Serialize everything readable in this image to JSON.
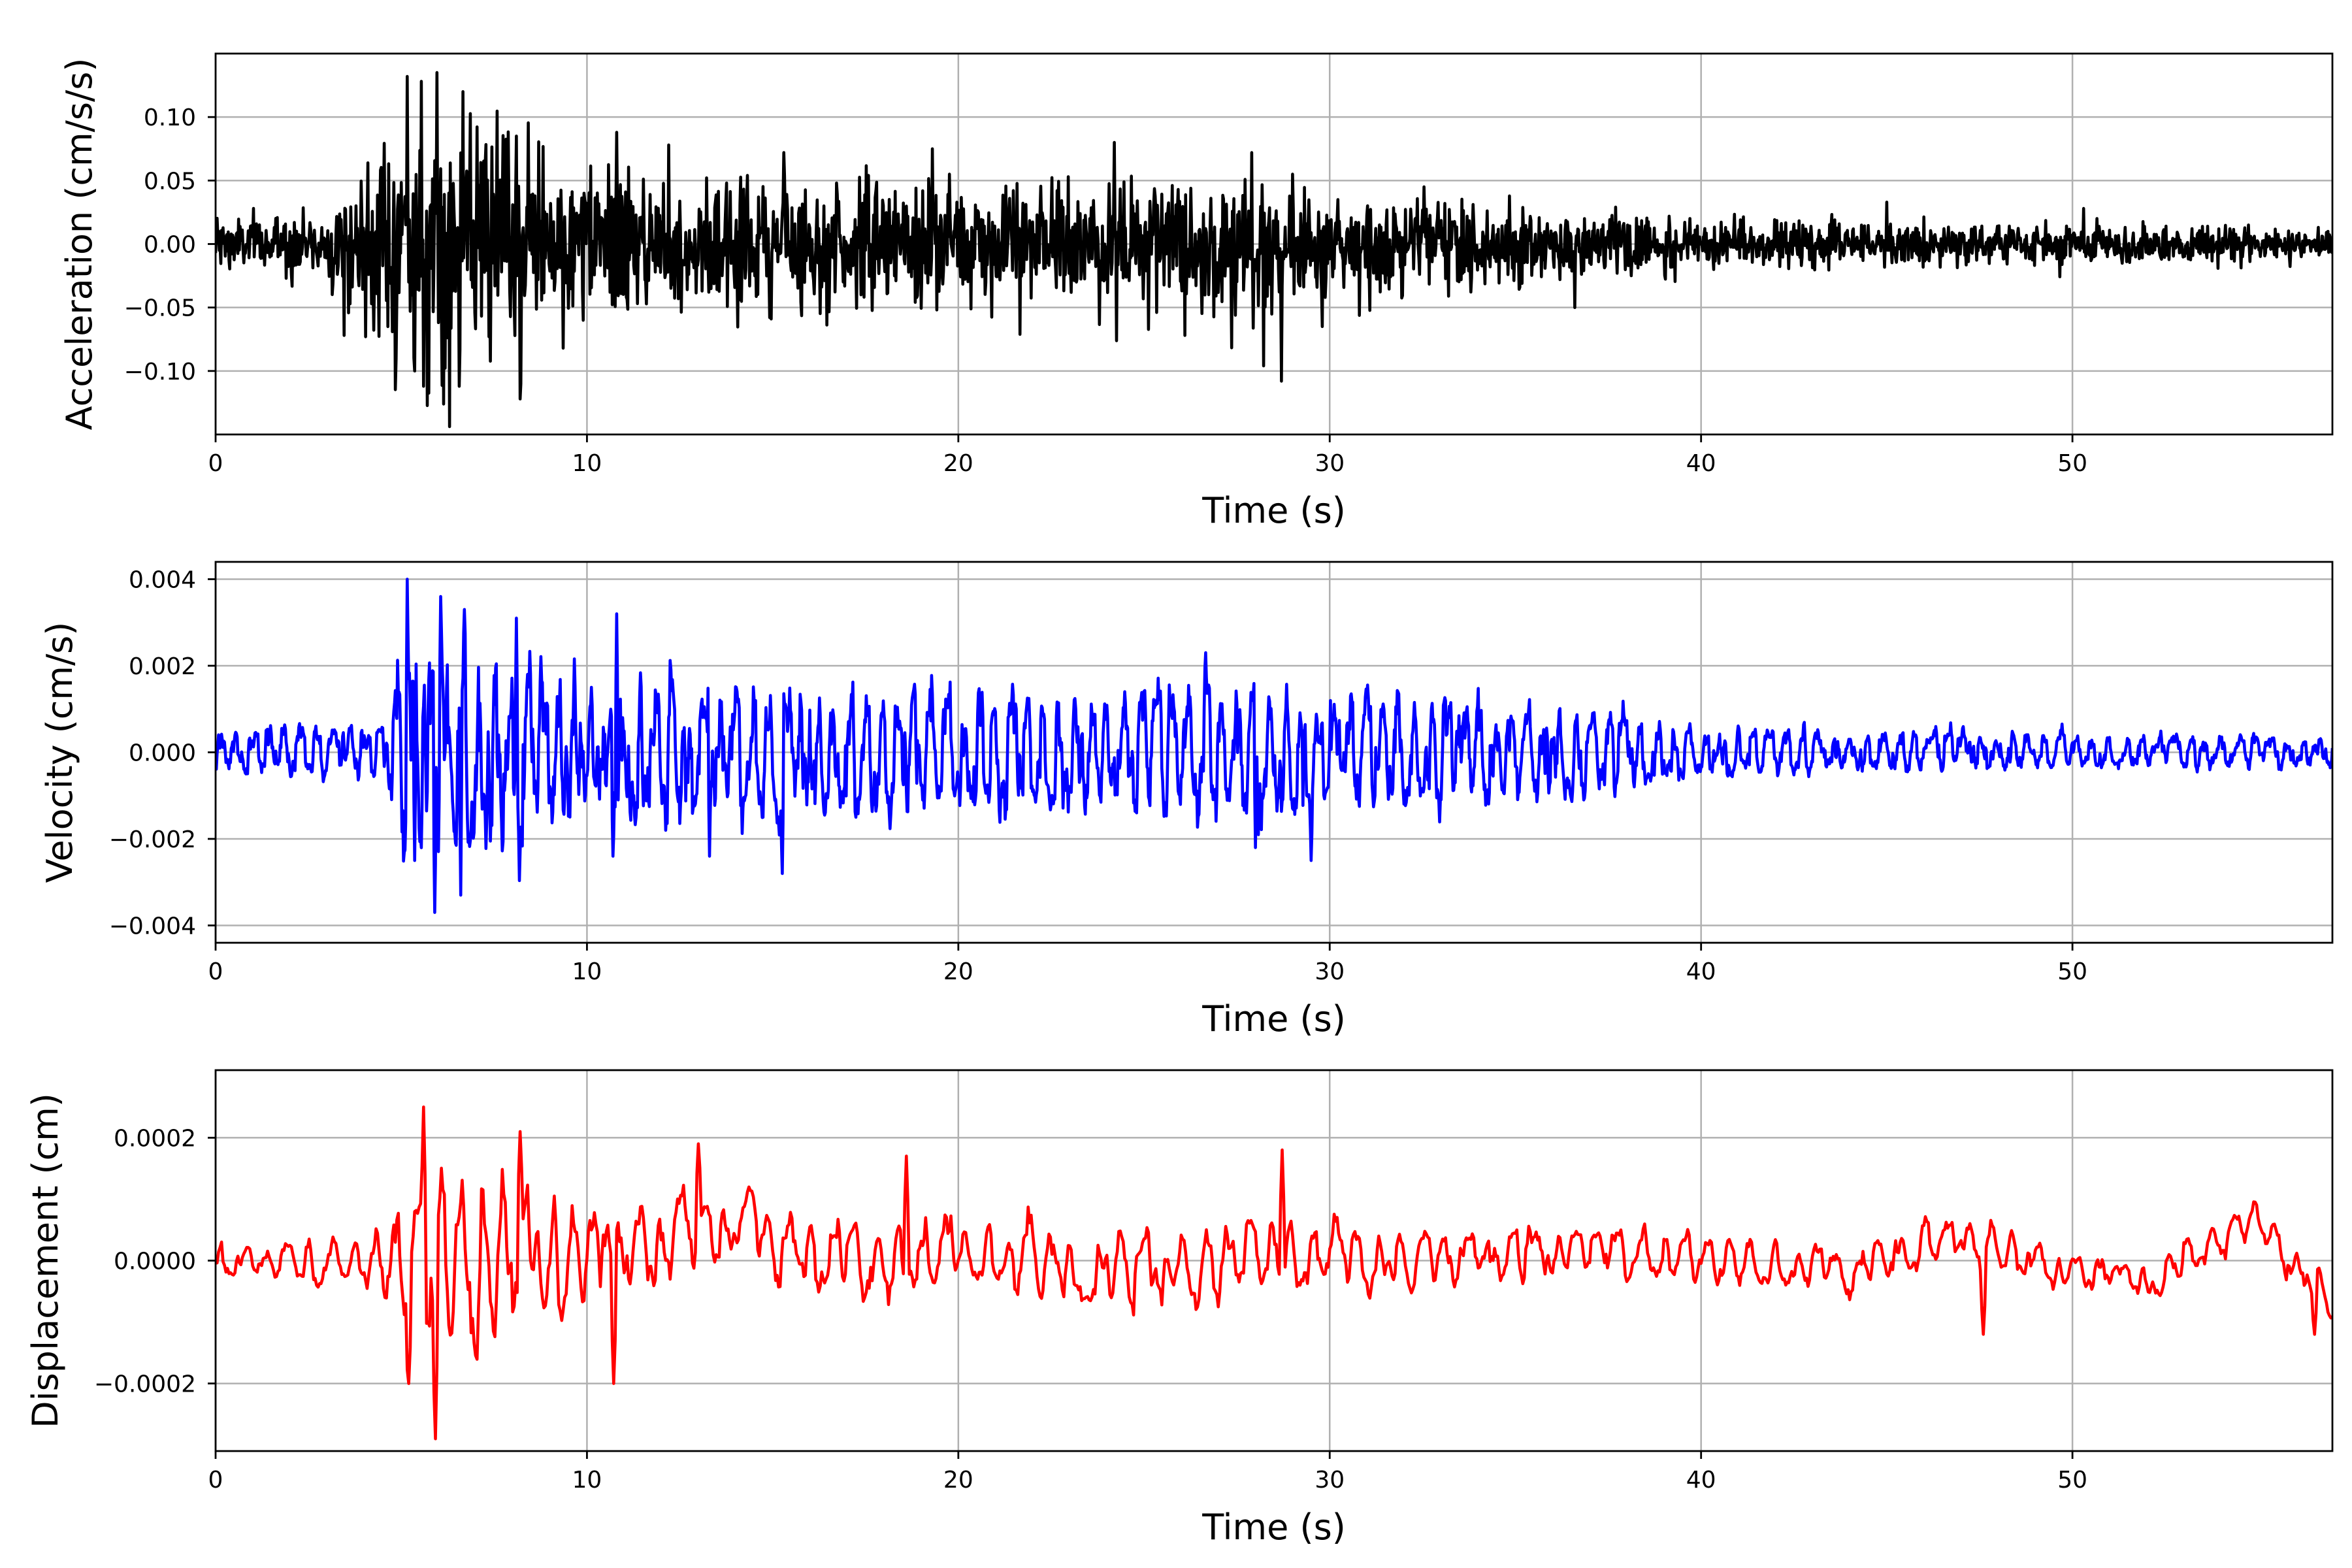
{
  "chart_data": [
    {
      "type": "line",
      "id": "acceleration",
      "xlabel": "Time (s)",
      "ylabel": "Acceleration (cm/s/s)",
      "xlim": [
        0,
        57
      ],
      "ylim": [
        -0.15,
        0.15
      ],
      "xticks": [
        0,
        10,
        20,
        30,
        40,
        50
      ],
      "xtick_labels": [
        "0",
        "10",
        "20",
        "30",
        "40",
        "50"
      ],
      "yticks": [
        -0.1,
        -0.05,
        0.0,
        0.05,
        0.1
      ],
      "ytick_labels": [
        "−0.10",
        "−0.05",
        "0.00",
        "0.05",
        "0.10"
      ],
      "grid": true,
      "color": "#000000",
      "sample_step": 0.02,
      "envelope": [
        [
          0,
          0.03
        ],
        [
          3,
          0.035
        ],
        [
          5,
          0.13
        ],
        [
          6,
          0.13
        ],
        [
          8,
          0.11
        ],
        [
          10,
          0.08
        ],
        [
          14,
          0.07
        ],
        [
          20,
          0.065
        ],
        [
          24,
          0.07
        ],
        [
          28.5,
          0.08
        ],
        [
          30,
          0.05
        ],
        [
          34,
          0.045
        ],
        [
          40,
          0.025
        ],
        [
          45,
          0.025
        ],
        [
          57,
          0.018
        ]
      ],
      "peaks": [
        [
          3.45,
          -0.072
        ],
        [
          5.15,
          0.132
        ],
        [
          5.35,
          -0.1
        ],
        [
          5.6,
          -0.112
        ],
        [
          5.95,
          0.135
        ],
        [
          6.55,
          -0.112
        ],
        [
          6.65,
          0.12
        ],
        [
          8.1,
          0.085
        ],
        [
          8.2,
          -0.122
        ],
        [
          9.35,
          -0.082
        ],
        [
          10.8,
          0.088
        ],
        [
          12.2,
          0.078
        ],
        [
          15.3,
          0.072
        ],
        [
          19.3,
          0.075
        ],
        [
          24.2,
          0.08
        ],
        [
          26.1,
          -0.072
        ],
        [
          27.9,
          0.072
        ],
        [
          28.7,
          -0.108
        ],
        [
          29.0,
          0.055
        ],
        [
          29.8,
          -0.065
        ],
        [
          36.6,
          -0.05
        ],
        [
          45.0,
          0.033
        ],
        [
          50.3,
          0.028
        ]
      ]
    },
    {
      "type": "line",
      "id": "velocity",
      "xlabel": "Time (s)",
      "ylabel": "Velocity (cm/s)",
      "xlim": [
        0,
        57
      ],
      "ylim": [
        -0.0044,
        0.0044
      ],
      "xticks": [
        0,
        10,
        20,
        30,
        40,
        50
      ],
      "xtick_labels": [
        "0",
        "10",
        "20",
        "30",
        "40",
        "50"
      ],
      "yticks": [
        -0.004,
        -0.002,
        0.0,
        0.002,
        0.004
      ],
      "ytick_labels": [
        "−0.004",
        "−0.002",
        "0.000",
        "0.002",
        "0.004"
      ],
      "grid": true,
      "color": "#0000ff",
      "sample_step": 0.02,
      "envelope": [
        [
          0,
          0.0007
        ],
        [
          4.5,
          0.0009
        ],
        [
          5.1,
          0.0038
        ],
        [
          6,
          0.0036
        ],
        [
          8,
          0.003
        ],
        [
          10,
          0.0022
        ],
        [
          14,
          0.002
        ],
        [
          20,
          0.0019
        ],
        [
          28,
          0.002
        ],
        [
          30,
          0.0019
        ],
        [
          35,
          0.0015
        ],
        [
          38,
          0.0013
        ],
        [
          39.5,
          0.0008
        ],
        [
          45,
          0.0006
        ],
        [
          57,
          0.0005
        ]
      ],
      "peaks": [
        [
          5.15,
          0.004
        ],
        [
          5.35,
          -0.0025
        ],
        [
          5.9,
          -0.0037
        ],
        [
          6.05,
          0.0036
        ],
        [
          6.6,
          -0.0033
        ],
        [
          6.7,
          0.0033
        ],
        [
          8.1,
          0.0031
        ],
        [
          10.8,
          0.0032
        ],
        [
          15.25,
          -0.0028
        ],
        [
          29.5,
          -0.0025
        ],
        [
          10.7,
          -0.0024
        ],
        [
          28.0,
          -0.0022
        ],
        [
          13.3,
          -0.0024
        ]
      ]
    },
    {
      "type": "line",
      "id": "displacement",
      "xlabel": "Time (s)",
      "ylabel": "Displacement (cm)",
      "xlim": [
        0,
        57
      ],
      "ylim": [
        -0.00031,
        0.00031
      ],
      "xticks": [
        0,
        10,
        20,
        30,
        40,
        50
      ],
      "xtick_labels": [
        "0",
        "10",
        "20",
        "30",
        "40",
        "50"
      ],
      "yticks": [
        -0.0002,
        0.0,
        0.0002
      ],
      "ytick_labels": [
        "−0.0002",
        "0.0000",
        "0.0002"
      ],
      "grid": true,
      "color": "#ff0000",
      "sample_step": 0.04,
      "baseline": [
        [
          0,
          0
        ],
        [
          10,
          0
        ],
        [
          12,
          3e-05
        ],
        [
          14,
          6e-05
        ],
        [
          16,
          0
        ],
        [
          20,
          1e-05
        ],
        [
          24,
          -2e-05
        ],
        [
          28,
          2e-05
        ],
        [
          32,
          0
        ],
        [
          38,
          2e-05
        ],
        [
          40,
          0
        ],
        [
          44,
          -2e-05
        ],
        [
          47,
          4e-05
        ],
        [
          50,
          -2e-05
        ],
        [
          52,
          -3e-05
        ],
        [
          55,
          7e-05
        ],
        [
          57,
          -7e-05
        ]
      ],
      "envelope": [
        [
          0,
          5e-05
        ],
        [
          4,
          7e-05
        ],
        [
          5.2,
          0.0002
        ],
        [
          6,
          0.00026
        ],
        [
          8,
          0.0002
        ],
        [
          10,
          0.00015
        ],
        [
          14,
          0.00012
        ],
        [
          20,
          0.0001
        ],
        [
          29,
          0.00011
        ],
        [
          32,
          8e-05
        ],
        [
          40,
          7e-05
        ],
        [
          50,
          6e-05
        ],
        [
          57,
          5e-05
        ]
      ],
      "peaks": [
        [
          5.2,
          -0.0002
        ],
        [
          5.6,
          0.00025
        ],
        [
          5.9,
          -0.00029
        ],
        [
          8.2,
          0.00021
        ],
        [
          10.7,
          -0.0002
        ],
        [
          13.0,
          0.00019
        ],
        [
          18.6,
          0.00017
        ],
        [
          28.7,
          0.00018
        ],
        [
          47.6,
          -0.00012
        ],
        [
          56.5,
          -0.00012
        ]
      ]
    }
  ]
}
